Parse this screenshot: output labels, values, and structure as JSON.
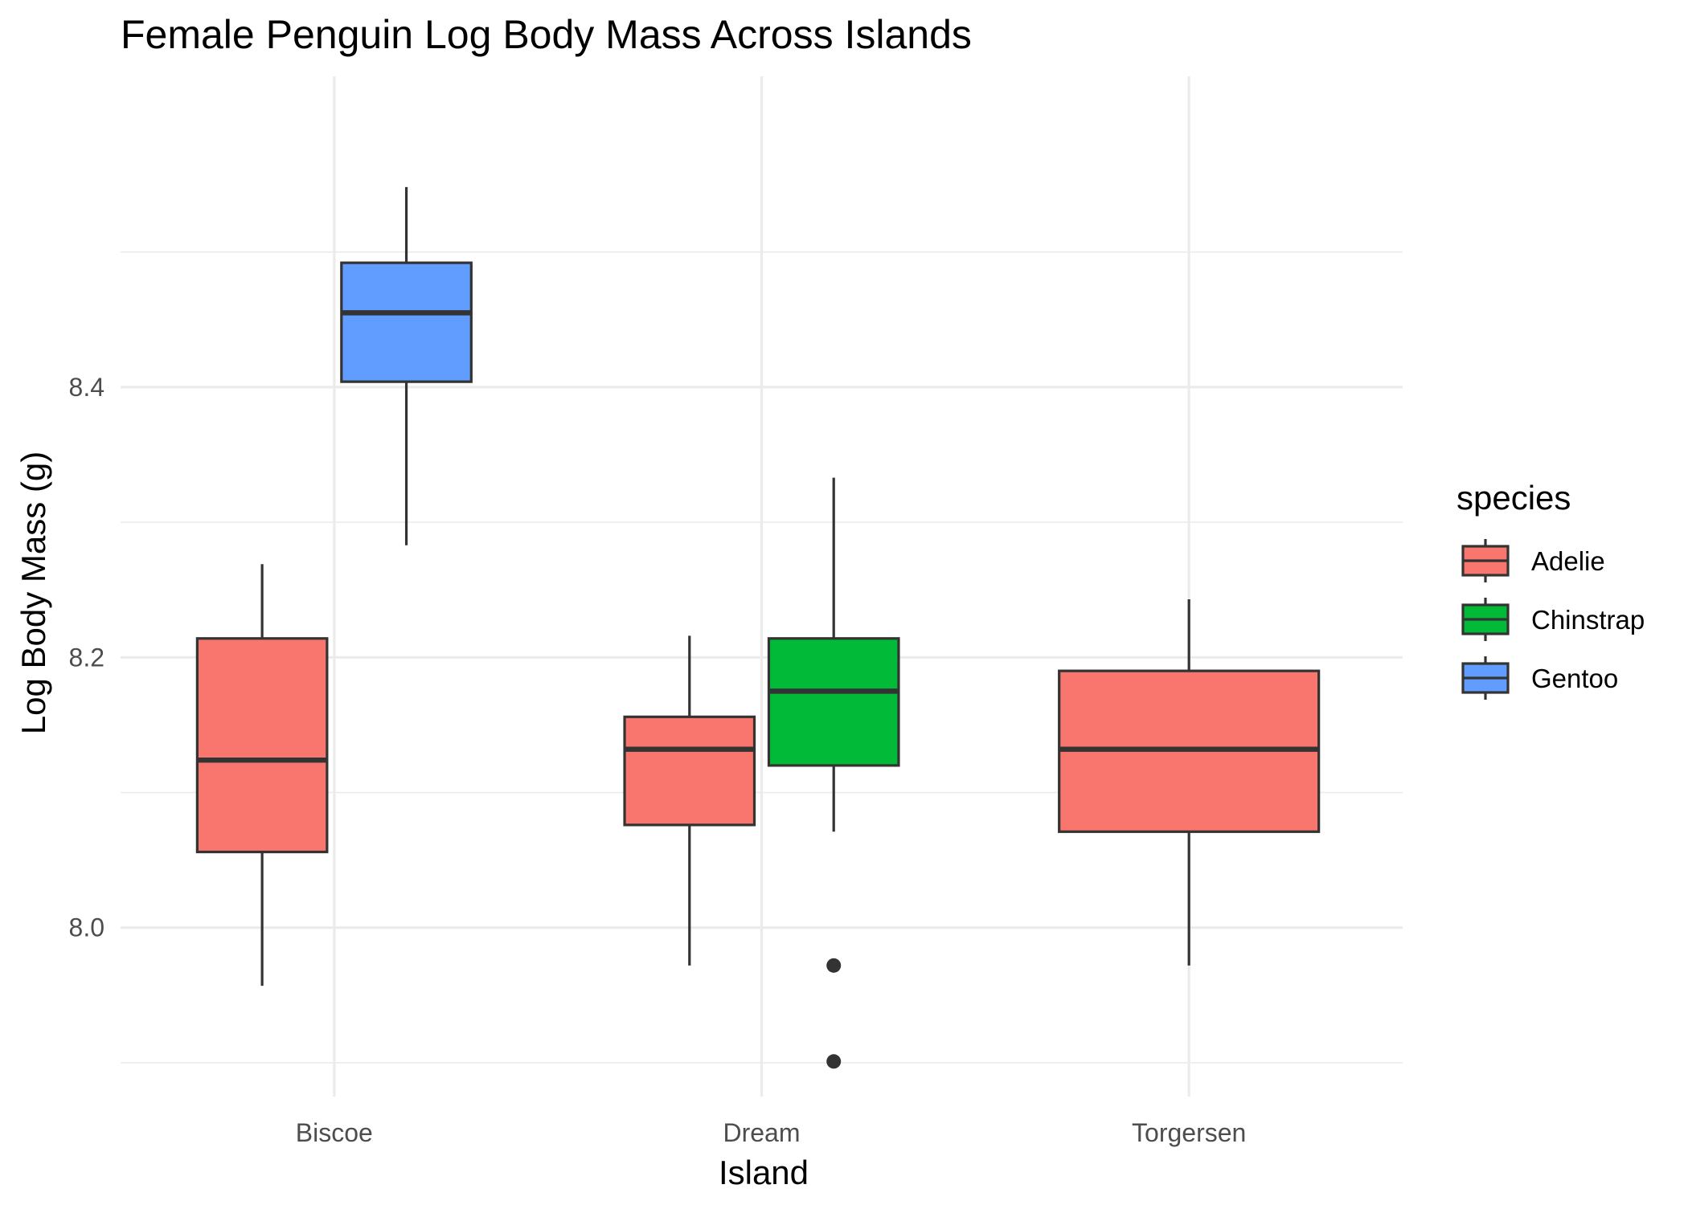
{
  "chart_data": {
    "type": "boxplot",
    "title": "Female Penguin Log Body Mass Across Islands",
    "xlabel": "Island",
    "ylabel": "Log Body Mass (g)",
    "categories": [
      "Biscoe",
      "Dream",
      "Torgersen"
    ],
    "ylim": [
      7.875,
      8.63
    ],
    "yticks": [
      8.0,
      8.2,
      8.4
    ],
    "ytick_labels": [
      "8.0",
      "8.2",
      "8.4"
    ],
    "y_minor_ticks": [
      7.9,
      8.1,
      8.3,
      8.5
    ],
    "grid": true,
    "legend": {
      "title": "species",
      "placement": "right",
      "entries": [
        {
          "name": "Adelie",
          "color": "#F8766D"
        },
        {
          "name": "Chinstrap",
          "color": "#00BA38"
        },
        {
          "name": "Gentoo",
          "color": "#619CFF"
        }
      ]
    },
    "boxes": [
      {
        "island": "Biscoe",
        "species": "Adelie",
        "lower_whisker": 7.957,
        "q1": 8.056,
        "median": 8.124,
        "q3": 8.214,
        "upper_whisker": 8.269,
        "outliers": []
      },
      {
        "island": "Biscoe",
        "species": "Gentoo",
        "lower_whisker": 8.283,
        "q1": 8.404,
        "median": 8.455,
        "q3": 8.492,
        "upper_whisker": 8.548,
        "outliers": []
      },
      {
        "island": "Dream",
        "species": "Adelie",
        "lower_whisker": 7.972,
        "q1": 8.076,
        "median": 8.132,
        "q3": 8.156,
        "upper_whisker": 8.216,
        "outliers": []
      },
      {
        "island": "Dream",
        "species": "Chinstrap",
        "lower_whisker": 8.071,
        "q1": 8.12,
        "median": 8.175,
        "q3": 8.214,
        "upper_whisker": 8.333,
        "outliers": [
          7.972,
          7.901
        ]
      },
      {
        "island": "Torgersen",
        "species": "Adelie",
        "lower_whisker": 7.972,
        "q1": 8.071,
        "median": 8.132,
        "q3": 8.19,
        "upper_whisker": 8.243,
        "outliers": []
      }
    ]
  }
}
